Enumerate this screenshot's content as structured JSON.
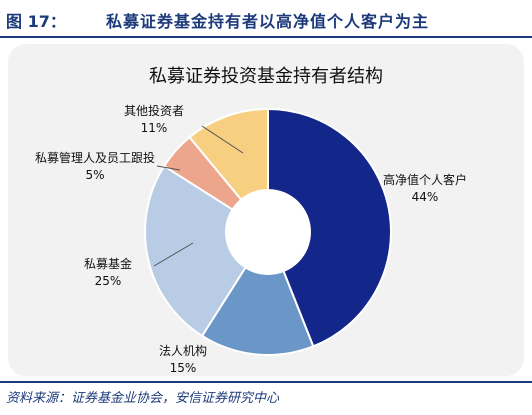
{
  "figure": {
    "number": "图 17：",
    "title": "私募证券基金持有者以高净值个人客户为主",
    "source": "资料来源：证券基金业协会，安信证券研究中心"
  },
  "chart_data": {
    "type": "pie",
    "title": "私募证券投资基金持有者结构",
    "donut": true,
    "categories": [
      "高净值个人客户",
      "法人机构",
      "私募基金",
      "私募管理人及员工跟投",
      "其他投资者"
    ],
    "values": [
      44,
      15,
      25,
      5,
      11
    ],
    "value_labels": [
      "44%",
      "15%",
      "25%",
      "5%",
      "11%"
    ],
    "colors": [
      "#13268a",
      "#6b96c8",
      "#b9cce6",
      "#eda58c",
      "#f7cf80"
    ],
    "legend": "none"
  }
}
